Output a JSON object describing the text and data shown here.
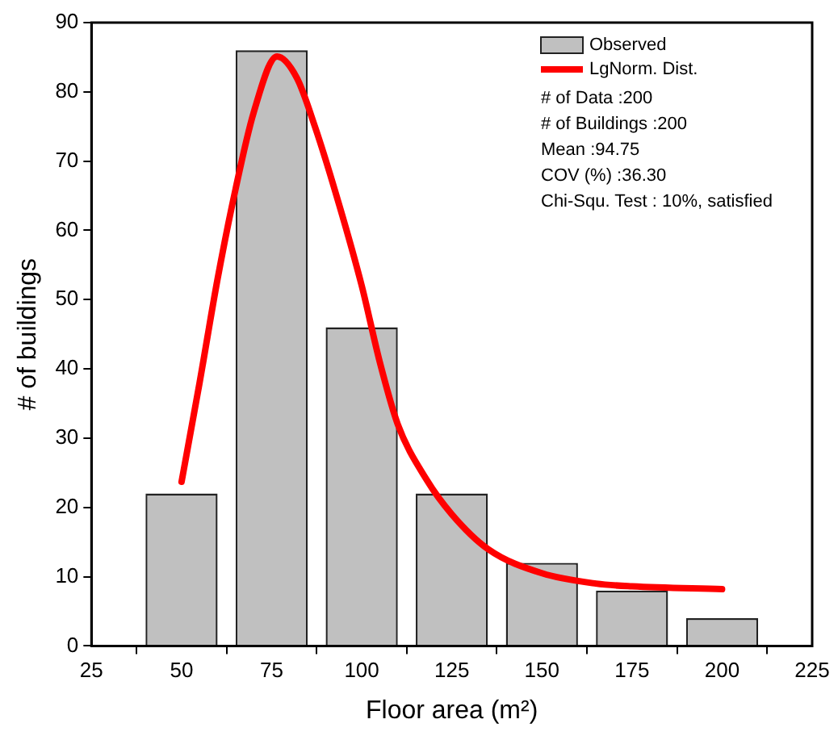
{
  "chart_data": {
    "type": "bar",
    "xlabel": "Floor area (m²)",
    "ylabel": "# of buildings",
    "xlim": [
      25,
      225
    ],
    "xticks": [
      25,
      50,
      75,
      100,
      125,
      150,
      175,
      200,
      225
    ],
    "ylim": [
      0,
      90
    ],
    "yticks": [
      0,
      10,
      20,
      30,
      40,
      50,
      60,
      70,
      80,
      90
    ],
    "grid": false,
    "legend": "top right",
    "series": [
      {
        "name": "Observed",
        "color": "#c0c0c0",
        "x": [
          50,
          75,
          100,
          125,
          150,
          175,
          200
        ],
        "values": [
          22,
          86,
          46,
          22,
          12,
          8,
          4
        ]
      },
      {
        "type": "line",
        "name": "LgNorm. Dist.",
        "color": "#ff0000",
        "marker": "none",
        "line_style": "solid",
        "x": [
          50,
          55,
          60,
          65,
          70,
          76.5,
          82,
          87,
          93,
          100,
          105,
          110,
          118,
          125,
          135,
          150,
          165,
          175,
          200
        ],
        "values": [
          23.7,
          38,
          53,
          66,
          77,
          85.1,
          82,
          75,
          65,
          52,
          41,
          32,
          24,
          19,
          14,
          10.5,
          9,
          8.6,
          8.2
        ]
      }
    ],
    "annotations": [
      "# of Data :200",
      "# of Buildings :200",
      "Mean :94.75",
      "COV (%) :36.30",
      "Chi-Squ. Test : 10%, satisfied"
    ]
  }
}
